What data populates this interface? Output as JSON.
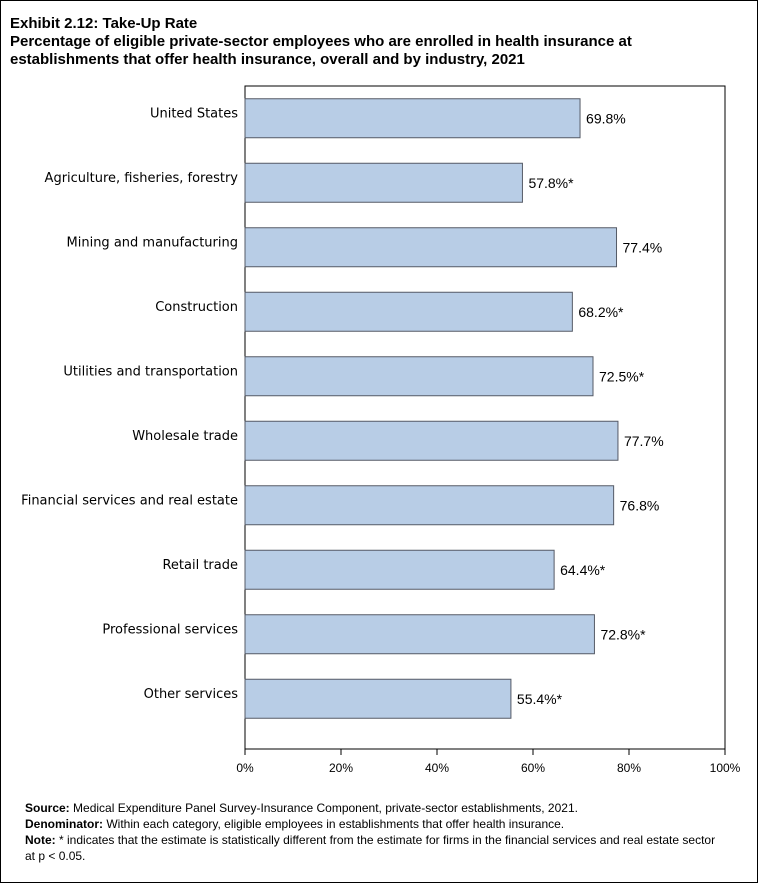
{
  "header": {
    "title": "Exhibit 2.12: Take-Up Rate",
    "subtitle_line1": "Percentage of eligible private-sector employees who are enrolled in health insurance at",
    "subtitle_line2": "establishments that offer health insurance, overall and by industry, 2021"
  },
  "chart_data": {
    "type": "bar",
    "orientation": "horizontal",
    "categories": [
      "United States",
      "Agriculture, fisheries, forestry",
      "Mining and manufacturing",
      "Construction",
      "Utilities and transportation",
      "Wholesale trade",
      "Financial services and real estate",
      "Retail trade",
      "Professional services",
      "Other services"
    ],
    "values": [
      69.8,
      57.8,
      77.4,
      68.2,
      72.5,
      77.7,
      76.8,
      64.4,
      72.8,
      55.4
    ],
    "data_labels": [
      "69.8%",
      "57.8%*",
      "77.4%",
      "68.2%*",
      "72.5%*",
      "77.7%",
      "76.8%",
      "64.4%*",
      "72.8%*",
      "55.4%*"
    ],
    "xlim": [
      0,
      100
    ],
    "xticks": [
      0,
      20,
      40,
      60,
      80,
      100
    ],
    "xtick_labels": [
      "0%",
      "20%",
      "40%",
      "60%",
      "80%",
      "100%"
    ],
    "bar_color": "#b8cde6",
    "bar_edge_color": "#555a66",
    "grid": false
  },
  "notes": {
    "source_label": "Source:",
    "source_text": " Medical Expenditure Panel Survey-Insurance Component, private-sector establishments, 2021.",
    "denominator_label": "Denominator:",
    "denominator_text": " Within each category, eligible employees in establishments that offer health insurance.",
    "note_label": "Note:",
    "note_text": "  * indicates that the estimate is statistically different from the estimate for firms in the financial services and real estate sector at p < 0.05."
  }
}
